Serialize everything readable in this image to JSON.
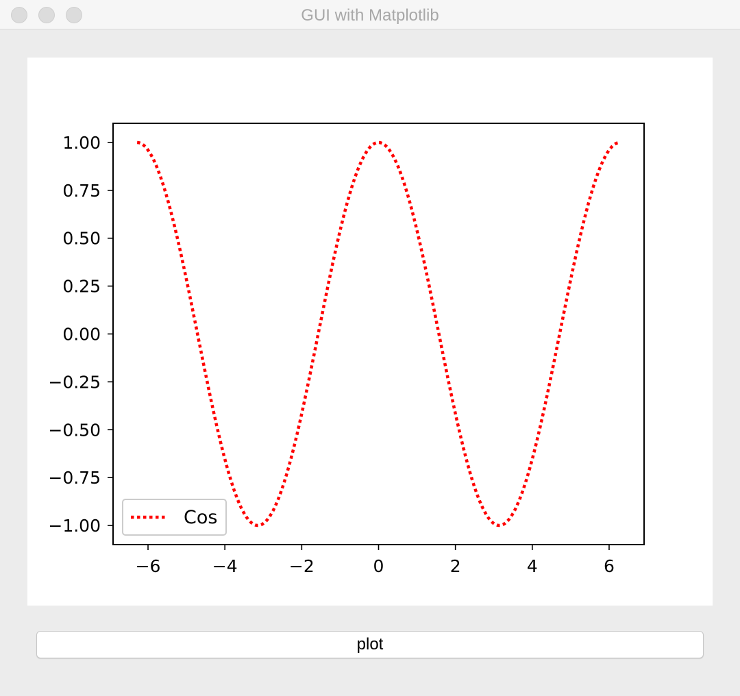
{
  "window": {
    "title": "GUI with Matplotlib"
  },
  "buttons": {
    "plot_label": "plot"
  },
  "chart_data": {
    "type": "line",
    "title": "",
    "xlabel": "",
    "ylabel": "",
    "xlim": [
      -6.91,
      6.91
    ],
    "ylim": [
      -1.1,
      1.1
    ],
    "x_ticks": [
      -6,
      -4,
      -2,
      0,
      2,
      4,
      6
    ],
    "x_tick_labels": [
      "−6",
      "−4",
      "−2",
      "0",
      "2",
      "4",
      "6"
    ],
    "y_ticks": [
      1.0,
      0.75,
      0.5,
      0.25,
      0.0,
      -0.25,
      -0.5,
      -0.75,
      -1.0
    ],
    "y_tick_labels": [
      "1.00",
      "0.75",
      "0.50",
      "0.25",
      "0.00",
      "−0.25",
      "−0.50",
      "−0.75",
      "−1.00"
    ],
    "grid": false,
    "legend_position": "lower-left",
    "series": [
      {
        "name": "Cos",
        "color": "#ff0000",
        "linestyle": "dotted",
        "x_range": [
          -6.2832,
          6.2832
        ],
        "x": [
          -6.2832,
          -5.4978,
          -4.7124,
          -3.927,
          -3.1416,
          -2.3562,
          -1.5708,
          -0.7854,
          0.0,
          0.7854,
          1.5708,
          2.3562,
          3.1416,
          3.927,
          4.7124,
          5.4978,
          6.2832
        ],
        "y": [
          1.0,
          0.7071,
          0.0,
          -0.7071,
          -1.0,
          -0.7071,
          0.0,
          0.7071,
          1.0,
          0.7071,
          0.0,
          -0.7071,
          -1.0,
          -0.7071,
          0.0,
          0.7071,
          1.0
        ]
      }
    ]
  }
}
